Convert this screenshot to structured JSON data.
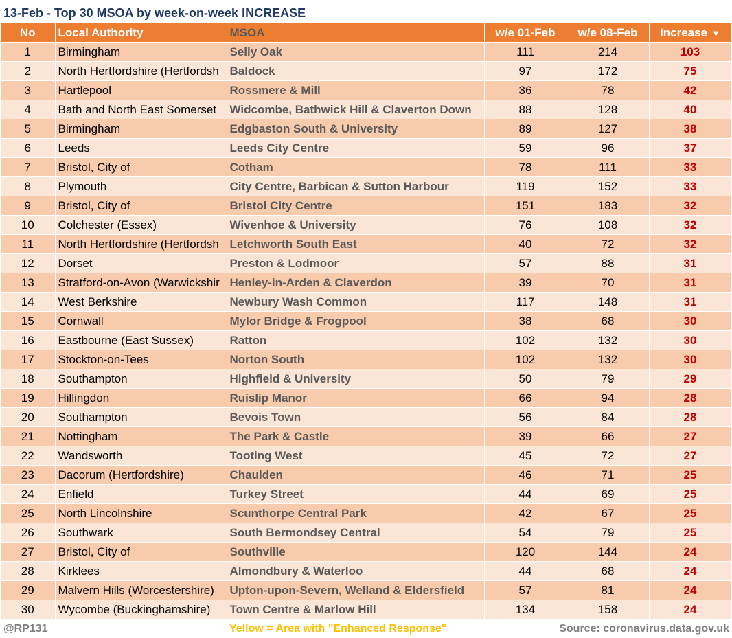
{
  "title": "13-Feb - Top 30 MSOA by week-on-week INCREASE",
  "chart_data": {
    "type": "table",
    "columns": [
      "No",
      "Local Authority",
      "MSOA",
      "w/e 01-Feb",
      "w/e 08-Feb",
      "Increase"
    ],
    "sort_indicator": "▼",
    "rows": [
      {
        "no": "1",
        "la": "Birmingham",
        "msoa": "Selly Oak",
        "wk1": "111",
        "wk2": "214",
        "inc": "103"
      },
      {
        "no": "2",
        "la": "North Hertfordshire (Hertfordsh",
        "msoa": "Baldock",
        "wk1": "97",
        "wk2": "172",
        "inc": "75"
      },
      {
        "no": "3",
        "la": "Hartlepool",
        "msoa": "Rossmere & Mill",
        "wk1": "36",
        "wk2": "78",
        "inc": "42"
      },
      {
        "no": "4",
        "la": "Bath and North East Somerset",
        "msoa": "Widcombe, Bathwick Hill & Claverton Down",
        "wk1": "88",
        "wk2": "128",
        "inc": "40"
      },
      {
        "no": "5",
        "la": "Birmingham",
        "msoa": "Edgbaston South & University",
        "wk1": "89",
        "wk2": "127",
        "inc": "38"
      },
      {
        "no": "6",
        "la": "Leeds",
        "msoa": "Leeds City Centre",
        "wk1": "59",
        "wk2": "96",
        "inc": "37"
      },
      {
        "no": "7",
        "la": "Bristol, City of",
        "msoa": "Cotham",
        "wk1": "78",
        "wk2": "111",
        "inc": "33"
      },
      {
        "no": "8",
        "la": "Plymouth",
        "msoa": "City Centre, Barbican & Sutton Harbour",
        "wk1": "119",
        "wk2": "152",
        "inc": "33"
      },
      {
        "no": "9",
        "la": "Bristol, City of",
        "msoa": "Bristol City Centre",
        "wk1": "151",
        "wk2": "183",
        "inc": "32"
      },
      {
        "no": "10",
        "la": "Colchester (Essex)",
        "msoa": "Wivenhoe & University",
        "wk1": "76",
        "wk2": "108",
        "inc": "32"
      },
      {
        "no": "11",
        "la": "North Hertfordshire (Hertfordsh",
        "msoa": "Letchworth South East",
        "wk1": "40",
        "wk2": "72",
        "inc": "32"
      },
      {
        "no": "12",
        "la": "Dorset",
        "msoa": "Preston & Lodmoor",
        "wk1": "57",
        "wk2": "88",
        "inc": "31"
      },
      {
        "no": "13",
        "la": "Stratford-on-Avon (Warwickshir",
        "msoa": "Henley-in-Arden & Claverdon",
        "wk1": "39",
        "wk2": "70",
        "inc": "31"
      },
      {
        "no": "14",
        "la": "West Berkshire",
        "msoa": "Newbury Wash Common",
        "wk1": "117",
        "wk2": "148",
        "inc": "31"
      },
      {
        "no": "15",
        "la": "Cornwall",
        "msoa": "Mylor Bridge & Frogpool",
        "wk1": "38",
        "wk2": "68",
        "inc": "30"
      },
      {
        "no": "16",
        "la": "Eastbourne (East Sussex)",
        "msoa": "Ratton",
        "wk1": "102",
        "wk2": "132",
        "inc": "30"
      },
      {
        "no": "17",
        "la": "Stockton-on-Tees",
        "msoa": "Norton South",
        "wk1": "102",
        "wk2": "132",
        "inc": "30"
      },
      {
        "no": "18",
        "la": "Southampton",
        "msoa": "Highfield & University",
        "wk1": "50",
        "wk2": "79",
        "inc": "29"
      },
      {
        "no": "19",
        "la": "Hillingdon",
        "msoa": "Ruislip Manor",
        "wk1": "66",
        "wk2": "94",
        "inc": "28"
      },
      {
        "no": "20",
        "la": "Southampton",
        "msoa": "Bevois Town",
        "wk1": "56",
        "wk2": "84",
        "inc": "28"
      },
      {
        "no": "21",
        "la": "Nottingham",
        "msoa": "The Park & Castle",
        "wk1": "39",
        "wk2": "66",
        "inc": "27"
      },
      {
        "no": "22",
        "la": "Wandsworth",
        "msoa": "Tooting West",
        "wk1": "45",
        "wk2": "72",
        "inc": "27"
      },
      {
        "no": "23",
        "la": "Dacorum (Hertfordshire)",
        "msoa": "Chaulden",
        "wk1": "46",
        "wk2": "71",
        "inc": "25"
      },
      {
        "no": "24",
        "la": "Enfield",
        "msoa": "Turkey Street",
        "wk1": "44",
        "wk2": "69",
        "inc": "25"
      },
      {
        "no": "25",
        "la": "North Lincolnshire",
        "msoa": "Scunthorpe Central Park",
        "wk1": "42",
        "wk2": "67",
        "inc": "25"
      },
      {
        "no": "26",
        "la": "Southwark",
        "msoa": "South Bermondsey Central",
        "wk1": "54",
        "wk2": "79",
        "inc": "25"
      },
      {
        "no": "27",
        "la": "Bristol, City of",
        "msoa": "Southville",
        "wk1": "120",
        "wk2": "144",
        "inc": "24"
      },
      {
        "no": "28",
        "la": "Kirklees",
        "msoa": "Almondbury & Waterloo",
        "wk1": "44",
        "wk2": "68",
        "inc": "24"
      },
      {
        "no": "29",
        "la": "Malvern Hills (Worcestershire)",
        "msoa": "Upton-upon-Severn, Welland & Eldersfield",
        "wk1": "57",
        "wk2": "81",
        "inc": "24"
      },
      {
        "no": "30",
        "la": "Wycombe (Buckinghamshire)",
        "msoa": "Town Centre & Marlow Hill",
        "wk1": "134",
        "wk2": "158",
        "inc": "24"
      }
    ]
  },
  "footer": {
    "handle": "@RP131",
    "note": "Yellow = Area with \"Enhanced Response\"",
    "source": "Source: coronavirus.data.gov.uk"
  },
  "colors": {
    "header_bg": "#ed7d31",
    "row_odd": "#f8cbad",
    "row_even": "#fbe5d6",
    "increase_text": "#c00000",
    "title_text": "#1f3864",
    "note_text": "#ffc000"
  }
}
